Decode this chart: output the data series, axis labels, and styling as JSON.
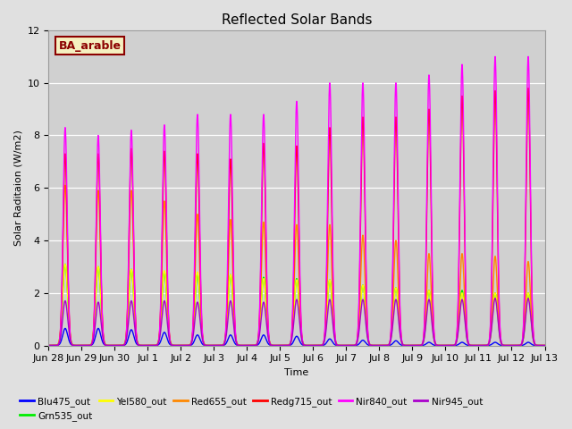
{
  "title": "Reflected Solar Bands",
  "xlabel": "Time",
  "ylabel": "Solar Raditaion (W/m2)",
  "ylim": [
    0,
    12
  ],
  "background_color": "#e0e0e0",
  "plot_bg_color": "#d0d0d0",
  "annotation_text": "BA_arable",
  "annotation_bg": "#f5f0c0",
  "annotation_border": "#8B0000",
  "annotation_text_color": "#8B0000",
  "series": [
    {
      "label": "Blu475_out",
      "color": "#0000ff"
    },
    {
      "label": "Grn535_out",
      "color": "#00ee00"
    },
    {
      "label": "Yel580_out",
      "color": "#ffff00"
    },
    {
      "label": "Red655_out",
      "color": "#ff8800"
    },
    {
      "label": "Redg715_out",
      "color": "#ff0000"
    },
    {
      "label": "Nir840_out",
      "color": "#ff00ff"
    },
    {
      "label": "Nir945_out",
      "color": "#aa00cc"
    }
  ],
  "num_days": 15,
  "xtick_labels": [
    "Jun 28",
    "Jun 29",
    "Jun 30",
    "Jul 1",
    "Jul 2",
    "Jul 3",
    "Jul 4",
    "Jul 5",
    "Jul 6",
    "Jul 7",
    "Jul 8",
    "Jul 9",
    "Jul 10",
    "Jul 11",
    "Jul 12",
    "Jul 13"
  ],
  "peaks_Blu": [
    0.65,
    0.65,
    0.6,
    0.5,
    0.4,
    0.4,
    0.4,
    0.35,
    0.25,
    0.2,
    0.18,
    0.12,
    0.12,
    0.12,
    0.12
  ],
  "peaks_Grn": [
    3.1,
    3.0,
    2.9,
    2.8,
    2.7,
    2.7,
    2.6,
    2.55,
    2.5,
    2.3,
    2.2,
    2.1,
    2.1,
    2.0,
    2.0
  ],
  "peaks_Yel": [
    3.1,
    3.0,
    2.9,
    2.85,
    2.8,
    2.7,
    2.55,
    2.5,
    2.5,
    2.3,
    2.2,
    2.1,
    2.0,
    2.0,
    2.0
  ],
  "peaks_Red": [
    6.1,
    5.9,
    5.9,
    5.5,
    5.0,
    4.8,
    4.7,
    4.6,
    4.6,
    4.2,
    4.0,
    3.5,
    3.5,
    3.4,
    3.2
  ],
  "peaks_Redg": [
    7.3,
    7.3,
    7.5,
    7.4,
    7.3,
    7.1,
    7.7,
    7.6,
    8.3,
    8.7,
    8.7,
    9.0,
    9.5,
    9.7,
    9.8
  ],
  "peaks_Nir840": [
    8.3,
    8.0,
    8.2,
    8.4,
    8.8,
    8.8,
    8.8,
    9.3,
    10.0,
    10.0,
    10.0,
    10.3,
    10.7,
    11.0,
    11.0
  ],
  "peaks_Nir945": [
    1.7,
    1.65,
    1.7,
    1.7,
    1.65,
    1.7,
    1.65,
    1.75,
    1.75,
    1.75,
    1.75,
    1.75,
    1.75,
    1.8,
    1.8
  ],
  "sigma": 1.5
}
